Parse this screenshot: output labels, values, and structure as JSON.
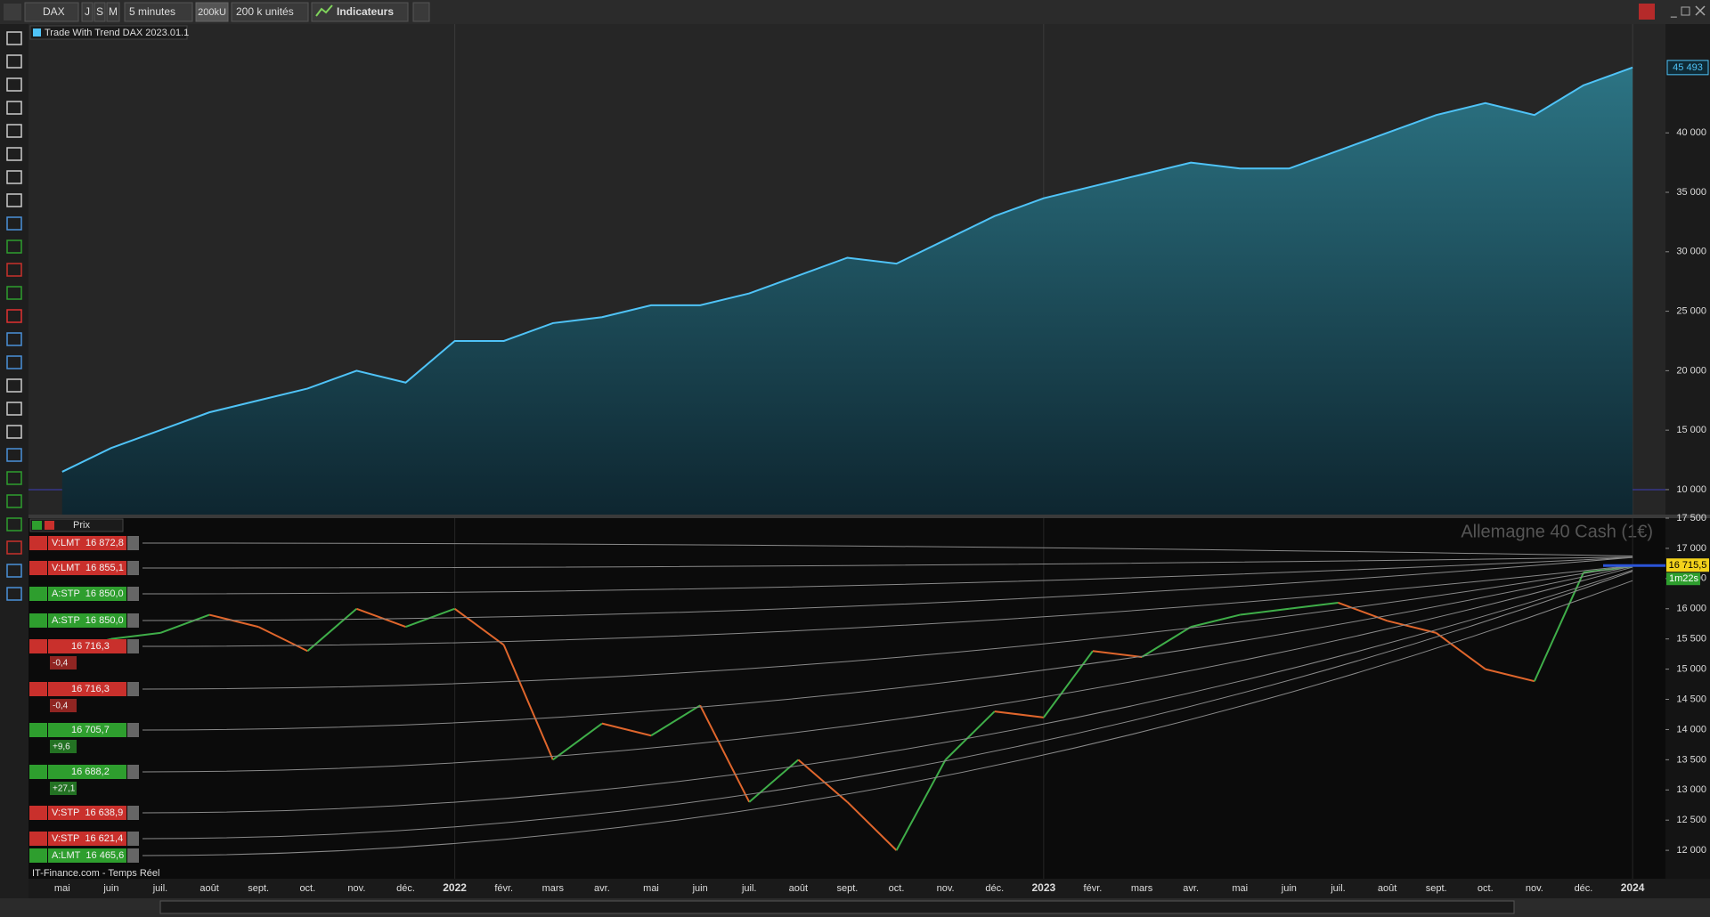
{
  "toolbar": {
    "symbol": "DAX",
    "periods": [
      "J",
      "S",
      "M"
    ],
    "timeframe": "5 minutes",
    "units_short": "200kU",
    "units": "200 k unités",
    "indicators": "Indicateurs"
  },
  "equity_panel": {
    "title": "Trade With Trend DAX 2023.01.1",
    "ylim": [
      7900,
      49150
    ],
    "yticks": [
      {
        "value": 10000,
        "label": "10 000"
      },
      {
        "value": 15000,
        "label": "15 000"
      },
      {
        "value": 20000,
        "label": "20 000"
      },
      {
        "value": 25000,
        "label": "25 000"
      },
      {
        "value": 30000,
        "label": "30 000"
      },
      {
        "value": 35000,
        "label": "35 000"
      },
      {
        "value": 40000,
        "label": "40 000"
      }
    ],
    "last": {
      "value": 45493,
      "label": "45 493"
    },
    "color": "#4fc3f7",
    "values": [
      11500,
      13500,
      15000,
      16500,
      17500,
      18500,
      20000,
      19000,
      22500,
      22500,
      24000,
      24500,
      25500,
      25500,
      26500,
      28000,
      29500,
      29000,
      31000,
      33000,
      34500,
      35500,
      36500,
      37500,
      37000,
      37000,
      38500,
      40000,
      41500,
      42500,
      41500,
      44000,
      45493
    ]
  },
  "price_panel": {
    "header": "Prix",
    "instrument": "Allemagne 40 Cash (1€)",
    "ylim": [
      11530,
      17500
    ],
    "yticks": [
      {
        "value": 12000,
        "label": "12 000"
      },
      {
        "value": 12500,
        "label": "12 500"
      },
      {
        "value": 13000,
        "label": "13 000"
      },
      {
        "value": 13500,
        "label": "13 500"
      },
      {
        "value": 14000,
        "label": "14 000"
      },
      {
        "value": 14500,
        "label": "14 500"
      },
      {
        "value": 15000,
        "label": "15 000"
      },
      {
        "value": 15500,
        "label": "15 500"
      },
      {
        "value": 16000,
        "label": "16 000"
      },
      {
        "value": 16500,
        "label": "16 500"
      },
      {
        "value": 17000,
        "label": "17 000"
      },
      {
        "value": 17500,
        "label": "17 500"
      }
    ],
    "last_price": {
      "value": 16715.5,
      "label": "16 715,5"
    },
    "timer": "1m22s",
    "values": [
      15300,
      15500,
      15600,
      15900,
      15700,
      15300,
      16000,
      15700,
      16000,
      15400,
      13500,
      14100,
      13900,
      14400,
      12800,
      13500,
      12800,
      12000,
      13500,
      14300,
      14200,
      15300,
      15200,
      15700,
      15900,
      16000,
      16100,
      15800,
      15600,
      15000,
      14800,
      16600,
      16700
    ],
    "orders": [
      {
        "type": "V:LMT",
        "price": {
          "value": 16872.8,
          "label": "16 872,8"
        },
        "color": "#c9302c"
      },
      {
        "type": "V:LMT",
        "price": {
          "value": 16855.1,
          "label": "16 855,1"
        },
        "color": "#c9302c"
      },
      {
        "type": "A:STP",
        "price": {
          "value": 16850.0,
          "label": "16 850,0"
        },
        "color": "#2e9e2e"
      },
      {
        "type": "A:STP",
        "price": {
          "value": 16850.0,
          "label": "16 850,0"
        },
        "color": "#2e9e2e"
      },
      {
        "price": {
          "value": 16716.3,
          "label": "16 716,3"
        },
        "pnl": "-0,4",
        "color": "#c9302c"
      },
      {
        "price": {
          "value": 16716.3,
          "label": "16 716,3"
        },
        "pnl": "-0,4",
        "color": "#c9302c"
      },
      {
        "price": {
          "value": 16705.7,
          "label": "16 705,7"
        },
        "pnl": "+9,6",
        "color": "#2e9e2e"
      },
      {
        "price": {
          "value": 16688.2,
          "label": "16 688,2"
        },
        "pnl": "+27,1",
        "color": "#2e9e2e"
      },
      {
        "type": "V:STP",
        "price": {
          "value": 16638.9,
          "label": "16 638,9"
        },
        "color": "#c9302c"
      },
      {
        "type": "V:STP",
        "price": {
          "value": 16621.4,
          "label": "16 621,4"
        },
        "color": "#c9302c"
      },
      {
        "type": "A:LMT",
        "price": {
          "value": 16465.6,
          "label": "16 465,6"
        },
        "color": "#2e9e2e"
      }
    ]
  },
  "x_labels": [
    "mai",
    "juin",
    "juil.",
    "août",
    "sept.",
    "oct.",
    "nov.",
    "déc.",
    "2022",
    "févr.",
    "mars",
    "avr.",
    "mai",
    "juin",
    "juil.",
    "août",
    "sept.",
    "oct.",
    "nov.",
    "déc.",
    "2023",
    "févr.",
    "mars",
    "avr.",
    "mai",
    "juin",
    "juil.",
    "août",
    "sept.",
    "oct.",
    "nov.",
    "déc.",
    "2024"
  ],
  "footer": "IT-Finance.com - Temps Réel"
}
